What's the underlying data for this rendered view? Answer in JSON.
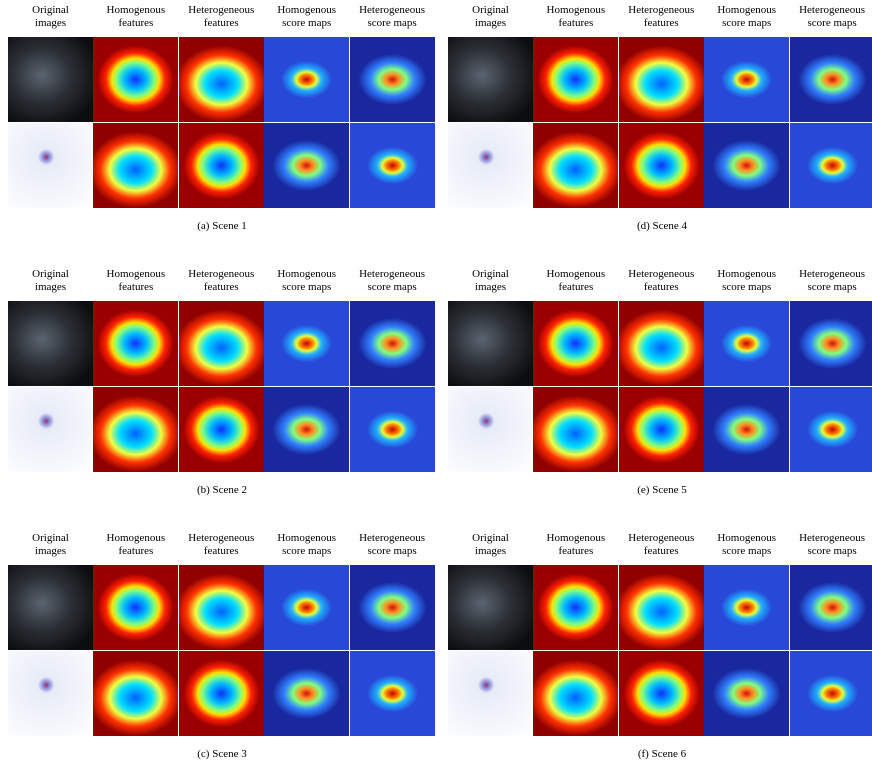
{
  "columns": [
    [
      "Original",
      "images"
    ],
    [
      "Homogenous",
      "features"
    ],
    [
      "Heterogeneous",
      "features"
    ],
    [
      "Homogenous",
      "score maps"
    ],
    [
      "Heterogeneous",
      "score maps"
    ]
  ],
  "panels": [
    {
      "caption": "(a) Scene 1"
    },
    {
      "caption": "(b) Scene 2"
    },
    {
      "caption": "(c) Scene 3"
    },
    {
      "caption": "(d) Scene 4"
    },
    {
      "caption": "(e) Scene 5"
    },
    {
      "caption": "(f) Scene 6"
    }
  ]
}
